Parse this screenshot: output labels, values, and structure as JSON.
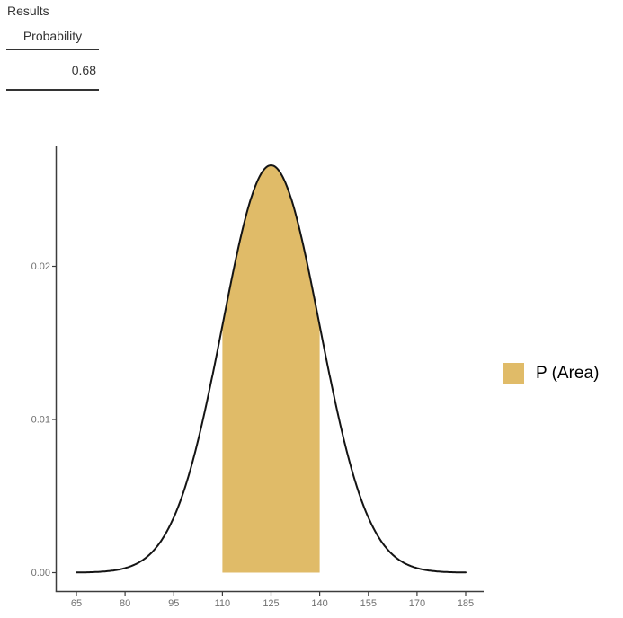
{
  "page": {
    "background": "#ffffff"
  },
  "results_table": {
    "title": "Results",
    "columns": [
      "Probability"
    ],
    "rows": [
      [
        "0.68"
      ]
    ]
  },
  "chart_data": {
    "type": "area",
    "title": "",
    "xlabel": "",
    "ylabel": "",
    "distribution": {
      "family": "normal",
      "mean": 125,
      "sd": 15
    },
    "x_domain": [
      65,
      185
    ],
    "ylim": [
      0,
      0.0279
    ],
    "y_peak": 0.0266,
    "grid": false,
    "curve": {
      "color": "#141414",
      "stroke_width": 2
    },
    "shaded_region": {
      "from": 110,
      "to": 140,
      "probability": 0.68,
      "fill": "#E0BB68"
    },
    "x_ticks": [
      {
        "value": 65,
        "label": "65"
      },
      {
        "value": 80,
        "label": "80"
      },
      {
        "value": 95,
        "label": "95"
      },
      {
        "value": 110,
        "label": "110"
      },
      {
        "value": 125,
        "label": "125"
      },
      {
        "value": 140,
        "label": "140"
      },
      {
        "value": 155,
        "label": "155"
      },
      {
        "value": 170,
        "label": "170"
      },
      {
        "value": 185,
        "label": "185"
      }
    ],
    "y_ticks": [
      {
        "value": 0,
        "label": "0.00"
      },
      {
        "value": 0.01,
        "label": "0.01"
      },
      {
        "value": 0.02,
        "label": "0.02"
      }
    ],
    "axis": {
      "color": "#3c3c3c",
      "label_color": "#6f6f6f",
      "label_size": 11
    },
    "legend": {
      "position": "right",
      "items": [
        {
          "label": "P (Area)",
          "color": "#E0BB68"
        }
      ]
    }
  }
}
